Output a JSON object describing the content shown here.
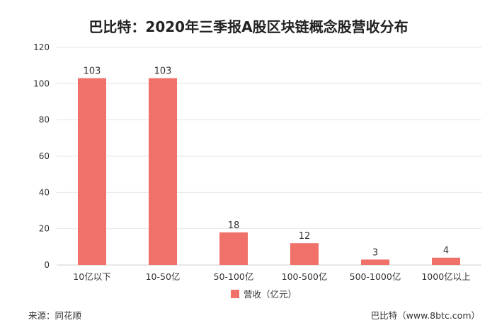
{
  "chart_data": {
    "type": "bar",
    "title": "巴比特：2020年三季报A股区块链概念股营收分布",
    "categories": [
      "10亿以下",
      "10-50亿",
      "50-100亿",
      "100-500亿",
      "500-1000亿",
      "1000亿以上"
    ],
    "series": [
      {
        "name": "营收（亿元）",
        "values": [
          103,
          103,
          18,
          12,
          3,
          4
        ]
      }
    ],
    "ylim": [
      0,
      120
    ],
    "yticks": [
      0,
      20,
      40,
      60,
      80,
      100,
      120
    ],
    "grid": true,
    "legend": "bottom",
    "colors": {
      "bar": "#f0706a",
      "grid": "#e6e6e6",
      "axis": "#cfcfcf"
    }
  },
  "footer": {
    "source": "来源：同花顺",
    "credit": "巴比特（www.8btc.com）"
  }
}
